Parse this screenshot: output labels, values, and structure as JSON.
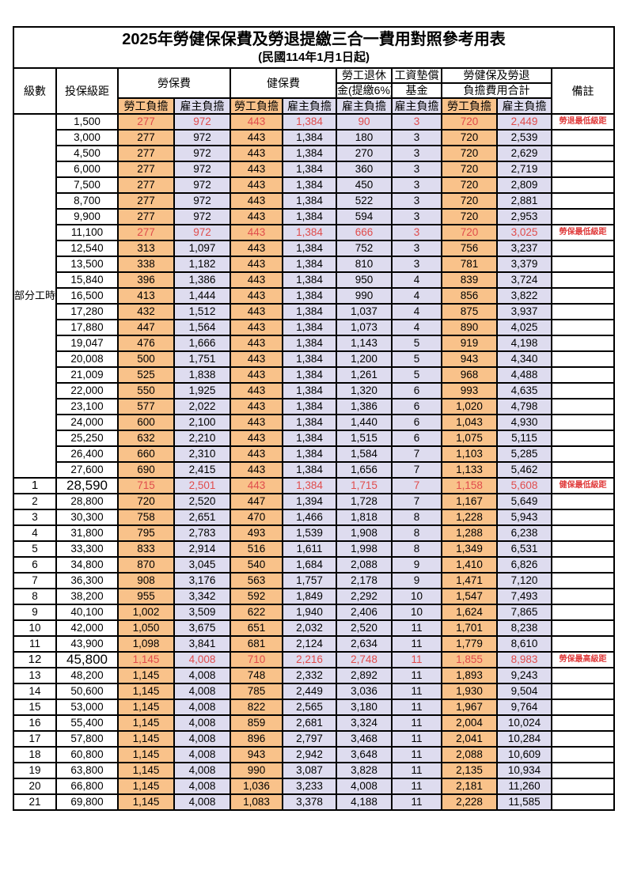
{
  "title": "2025年勞健保保費及勞退提繳三合一費用對照參考用表",
  "subtitle": "(民國114年1月1日起)",
  "colors": {
    "employee_bg": "#F9C28A",
    "employer_bg": "#DEDCEF",
    "highlight_text": "#E04C4C",
    "border": "#000000"
  },
  "header": {
    "level": "級數",
    "bracket": "投保級距",
    "labor_group": "勞保費",
    "health_group": "健保費",
    "pension_line1": "勞工退休",
    "pension_line2": "金(提繳6%)",
    "fund_line1": "工資墊償",
    "fund_line2": "基金",
    "total_line1": "勞健保及勞退",
    "total_line2": "負擔費用合計",
    "remark": "備註",
    "employee": "勞工負擔",
    "employer": "雇主負擔"
  },
  "part_time_label": "部分工時",
  "part_time_span": 23,
  "rows": [
    {
      "level": "",
      "bracket": "1,500",
      "values": [
        "277",
        "972",
        "443",
        "1,384",
        "90",
        "3",
        "720",
        "2,449"
      ],
      "remark": "勞退最低級距",
      "red": true,
      "big": false
    },
    {
      "level": "",
      "bracket": "3,000",
      "values": [
        "277",
        "972",
        "443",
        "1,384",
        "180",
        "3",
        "720",
        "2,539"
      ],
      "remark": "",
      "red": false,
      "big": false
    },
    {
      "level": "",
      "bracket": "4,500",
      "values": [
        "277",
        "972",
        "443",
        "1,384",
        "270",
        "3",
        "720",
        "2,629"
      ],
      "remark": "",
      "red": false,
      "big": false
    },
    {
      "level": "",
      "bracket": "6,000",
      "values": [
        "277",
        "972",
        "443",
        "1,384",
        "360",
        "3",
        "720",
        "2,719"
      ],
      "remark": "",
      "red": false,
      "big": false
    },
    {
      "level": "",
      "bracket": "7,500",
      "values": [
        "277",
        "972",
        "443",
        "1,384",
        "450",
        "3",
        "720",
        "2,809"
      ],
      "remark": "",
      "red": false,
      "big": false
    },
    {
      "level": "",
      "bracket": "8,700",
      "values": [
        "277",
        "972",
        "443",
        "1,384",
        "522",
        "3",
        "720",
        "2,881"
      ],
      "remark": "",
      "red": false,
      "big": false
    },
    {
      "level": "",
      "bracket": "9,900",
      "values": [
        "277",
        "972",
        "443",
        "1,384",
        "594",
        "3",
        "720",
        "2,953"
      ],
      "remark": "",
      "red": false,
      "big": false
    },
    {
      "level": "",
      "bracket": "11,100",
      "values": [
        "277",
        "972",
        "443",
        "1,384",
        "666",
        "3",
        "720",
        "3,025"
      ],
      "remark": "勞保最低級距",
      "red": true,
      "big": false
    },
    {
      "level": "",
      "bracket": "12,540",
      "values": [
        "313",
        "1,097",
        "443",
        "1,384",
        "752",
        "3",
        "756",
        "3,237"
      ],
      "remark": "",
      "red": false,
      "big": false
    },
    {
      "level": "",
      "bracket": "13,500",
      "values": [
        "338",
        "1,182",
        "443",
        "1,384",
        "810",
        "3",
        "781",
        "3,379"
      ],
      "remark": "",
      "red": false,
      "big": false
    },
    {
      "level": "",
      "bracket": "15,840",
      "values": [
        "396",
        "1,386",
        "443",
        "1,384",
        "950",
        "4",
        "839",
        "3,724"
      ],
      "remark": "",
      "red": false,
      "big": false
    },
    {
      "level": "",
      "bracket": "16,500",
      "values": [
        "413",
        "1,444",
        "443",
        "1,384",
        "990",
        "4",
        "856",
        "3,822"
      ],
      "remark": "",
      "red": false,
      "big": false
    },
    {
      "level": "",
      "bracket": "17,280",
      "values": [
        "432",
        "1,512",
        "443",
        "1,384",
        "1,037",
        "4",
        "875",
        "3,937"
      ],
      "remark": "",
      "red": false,
      "big": false
    },
    {
      "level": "",
      "bracket": "17,880",
      "values": [
        "447",
        "1,564",
        "443",
        "1,384",
        "1,073",
        "4",
        "890",
        "4,025"
      ],
      "remark": "",
      "red": false,
      "big": false
    },
    {
      "level": "",
      "bracket": "19,047",
      "values": [
        "476",
        "1,666",
        "443",
        "1,384",
        "1,143",
        "5",
        "919",
        "4,198"
      ],
      "remark": "",
      "red": false,
      "big": false
    },
    {
      "level": "",
      "bracket": "20,008",
      "values": [
        "500",
        "1,751",
        "443",
        "1,384",
        "1,200",
        "5",
        "943",
        "4,340"
      ],
      "remark": "",
      "red": false,
      "big": false
    },
    {
      "level": "",
      "bracket": "21,009",
      "values": [
        "525",
        "1,838",
        "443",
        "1,384",
        "1,261",
        "5",
        "968",
        "4,488"
      ],
      "remark": "",
      "red": false,
      "big": false
    },
    {
      "level": "",
      "bracket": "22,000",
      "values": [
        "550",
        "1,925",
        "443",
        "1,384",
        "1,320",
        "6",
        "993",
        "4,635"
      ],
      "remark": "",
      "red": false,
      "big": false
    },
    {
      "level": "",
      "bracket": "23,100",
      "values": [
        "577",
        "2,022",
        "443",
        "1,384",
        "1,386",
        "6",
        "1,020",
        "4,798"
      ],
      "remark": "",
      "red": false,
      "big": false
    },
    {
      "level": "",
      "bracket": "24,000",
      "values": [
        "600",
        "2,100",
        "443",
        "1,384",
        "1,440",
        "6",
        "1,043",
        "4,930"
      ],
      "remark": "",
      "red": false,
      "big": false
    },
    {
      "level": "",
      "bracket": "25,250",
      "values": [
        "632",
        "2,210",
        "443",
        "1,384",
        "1,515",
        "6",
        "1,075",
        "5,115"
      ],
      "remark": "",
      "red": false,
      "big": false
    },
    {
      "level": "",
      "bracket": "26,400",
      "values": [
        "660",
        "2,310",
        "443",
        "1,384",
        "1,584",
        "7",
        "1,103",
        "5,285"
      ],
      "remark": "",
      "red": false,
      "big": false
    },
    {
      "level": "",
      "bracket": "27,600",
      "values": [
        "690",
        "2,415",
        "443",
        "1,384",
        "1,656",
        "7",
        "1,133",
        "5,462"
      ],
      "remark": "",
      "red": false,
      "big": false
    },
    {
      "level": "1",
      "bracket": "28,590",
      "values": [
        "715",
        "2,501",
        "443",
        "1,384",
        "1,715",
        "7",
        "1,158",
        "5,608"
      ],
      "remark": "健保最低級距",
      "red": true,
      "big": true
    },
    {
      "level": "2",
      "bracket": "28,800",
      "values": [
        "720",
        "2,520",
        "447",
        "1,394",
        "1,728",
        "7",
        "1,167",
        "5,649"
      ],
      "remark": "",
      "red": false,
      "big": false
    },
    {
      "level": "3",
      "bracket": "30,300",
      "values": [
        "758",
        "2,651",
        "470",
        "1,466",
        "1,818",
        "8",
        "1,228",
        "5,943"
      ],
      "remark": "",
      "red": false,
      "big": false
    },
    {
      "level": "4",
      "bracket": "31,800",
      "values": [
        "795",
        "2,783",
        "493",
        "1,539",
        "1,908",
        "8",
        "1,288",
        "6,238"
      ],
      "remark": "",
      "red": false,
      "big": false
    },
    {
      "level": "5",
      "bracket": "33,300",
      "values": [
        "833",
        "2,914",
        "516",
        "1,611",
        "1,998",
        "8",
        "1,349",
        "6,531"
      ],
      "remark": "",
      "red": false,
      "big": false
    },
    {
      "level": "6",
      "bracket": "34,800",
      "values": [
        "870",
        "3,045",
        "540",
        "1,684",
        "2,088",
        "9",
        "1,410",
        "6,826"
      ],
      "remark": "",
      "red": false,
      "big": false
    },
    {
      "level": "7",
      "bracket": "36,300",
      "values": [
        "908",
        "3,176",
        "563",
        "1,757",
        "2,178",
        "9",
        "1,471",
        "7,120"
      ],
      "remark": "",
      "red": false,
      "big": false
    },
    {
      "level": "8",
      "bracket": "38,200",
      "values": [
        "955",
        "3,342",
        "592",
        "1,849",
        "2,292",
        "10",
        "1,547",
        "7,493"
      ],
      "remark": "",
      "red": false,
      "big": false
    },
    {
      "level": "9",
      "bracket": "40,100",
      "values": [
        "1,002",
        "3,509",
        "622",
        "1,940",
        "2,406",
        "10",
        "1,624",
        "7,865"
      ],
      "remark": "",
      "red": false,
      "big": false
    },
    {
      "level": "10",
      "bracket": "42,000",
      "values": [
        "1,050",
        "3,675",
        "651",
        "2,032",
        "2,520",
        "11",
        "1,701",
        "8,238"
      ],
      "remark": "",
      "red": false,
      "big": false
    },
    {
      "level": "11",
      "bracket": "43,900",
      "values": [
        "1,098",
        "3,841",
        "681",
        "2,124",
        "2,634",
        "11",
        "1,779",
        "8,610"
      ],
      "remark": "",
      "red": false,
      "big": false
    },
    {
      "level": "12",
      "bracket": "45,800",
      "values": [
        "1,145",
        "4,008",
        "710",
        "2,216",
        "2,748",
        "11",
        "1,855",
        "8,983"
      ],
      "remark": "勞保最高級距",
      "red": true,
      "big": true
    },
    {
      "level": "13",
      "bracket": "48,200",
      "values": [
        "1,145",
        "4,008",
        "748",
        "2,332",
        "2,892",
        "11",
        "1,893",
        "9,243"
      ],
      "remark": "",
      "red": false,
      "big": false
    },
    {
      "level": "14",
      "bracket": "50,600",
      "values": [
        "1,145",
        "4,008",
        "785",
        "2,449",
        "3,036",
        "11",
        "1,930",
        "9,504"
      ],
      "remark": "",
      "red": false,
      "big": false
    },
    {
      "level": "15",
      "bracket": "53,000",
      "values": [
        "1,145",
        "4,008",
        "822",
        "2,565",
        "3,180",
        "11",
        "1,967",
        "9,764"
      ],
      "remark": "",
      "red": false,
      "big": false
    },
    {
      "level": "16",
      "bracket": "55,400",
      "values": [
        "1,145",
        "4,008",
        "859",
        "2,681",
        "3,324",
        "11",
        "2,004",
        "10,024"
      ],
      "remark": "",
      "red": false,
      "big": false
    },
    {
      "level": "17",
      "bracket": "57,800",
      "values": [
        "1,145",
        "4,008",
        "896",
        "2,797",
        "3,468",
        "11",
        "2,041",
        "10,284"
      ],
      "remark": "",
      "red": false,
      "big": false
    },
    {
      "level": "18",
      "bracket": "60,800",
      "values": [
        "1,145",
        "4,008",
        "943",
        "2,942",
        "3,648",
        "11",
        "2,088",
        "10,609"
      ],
      "remark": "",
      "red": false,
      "big": false
    },
    {
      "level": "19",
      "bracket": "63,800",
      "values": [
        "1,145",
        "4,008",
        "990",
        "3,087",
        "3,828",
        "11",
        "2,135",
        "10,934"
      ],
      "remark": "",
      "red": false,
      "big": false
    },
    {
      "level": "20",
      "bracket": "66,800",
      "values": [
        "1,145",
        "4,008",
        "1,036",
        "3,233",
        "4,008",
        "11",
        "2,181",
        "11,260"
      ],
      "remark": "",
      "red": false,
      "big": false
    },
    {
      "level": "21",
      "bracket": "69,800",
      "values": [
        "1,145",
        "4,008",
        "1,083",
        "3,378",
        "4,188",
        "11",
        "2,228",
        "11,585"
      ],
      "remark": "",
      "red": false,
      "big": false
    }
  ],
  "value_column_names": [
    "labor-employee",
    "labor-employer",
    "health-employee",
    "health-employer",
    "pension-employer",
    "fund-employer",
    "total-employee",
    "total-employer"
  ]
}
